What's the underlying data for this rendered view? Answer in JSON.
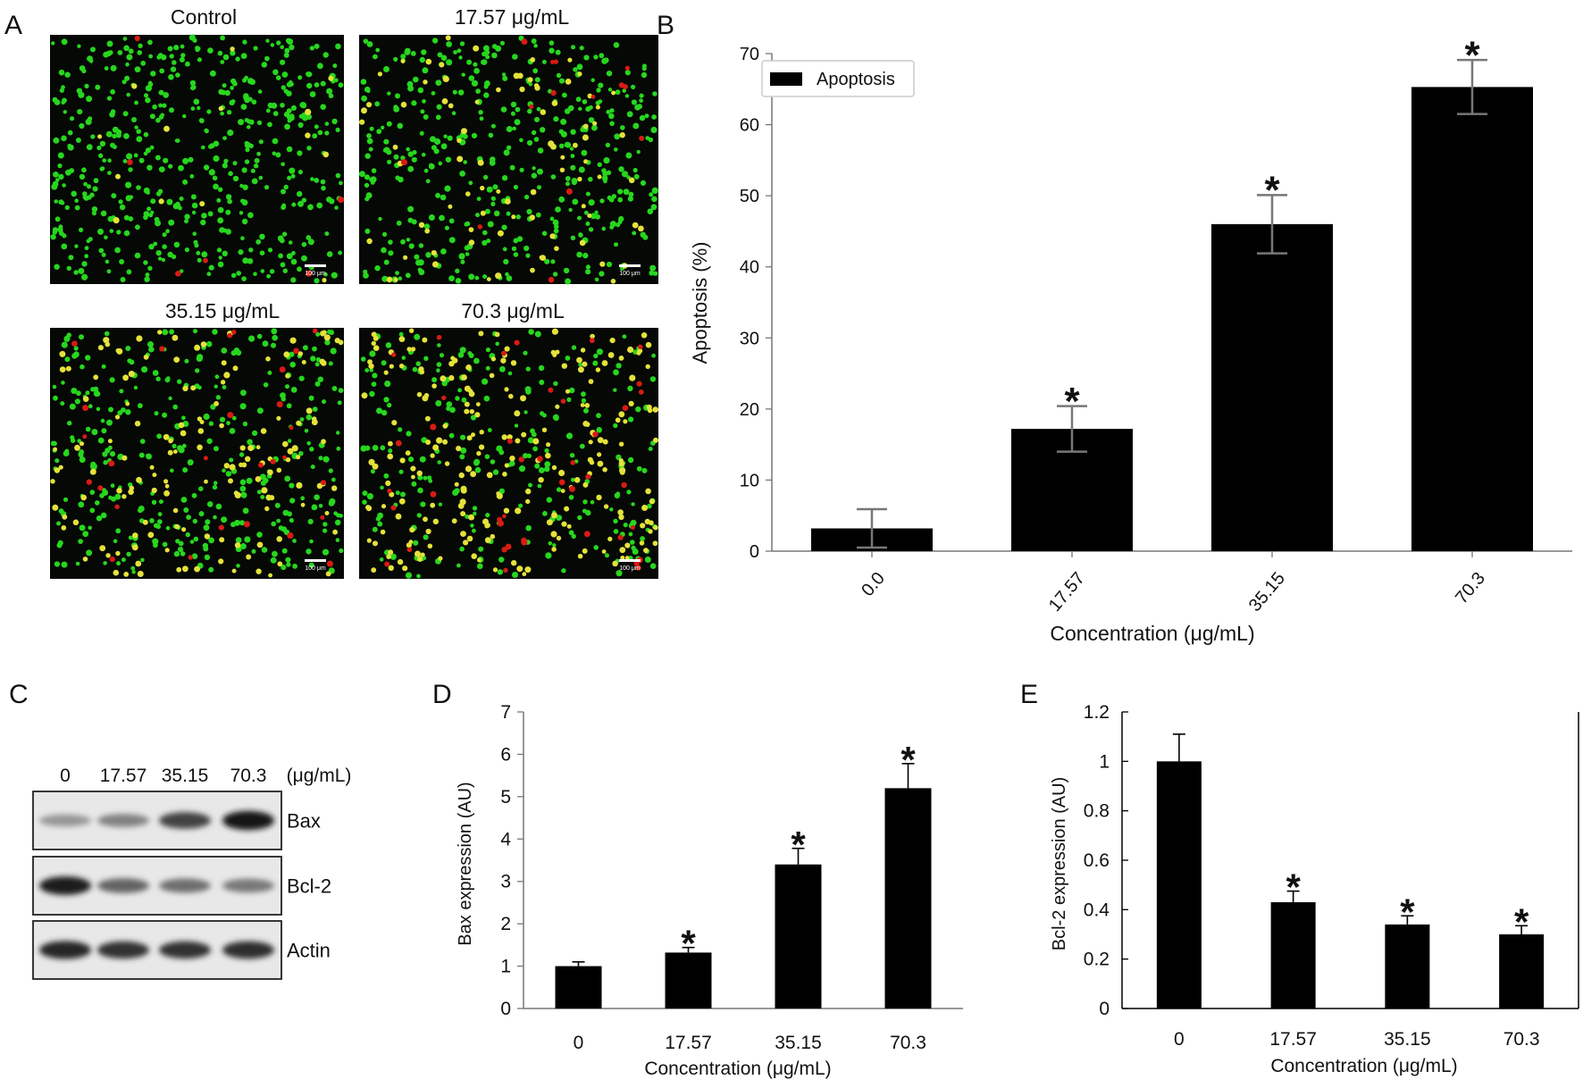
{
  "panel_letters": [
    "A",
    "B",
    "C",
    "D",
    "E"
  ],
  "micrographs": {
    "titles": [
      "Control",
      "17.57 μg/mL",
      "35.15 μg/mL",
      "70.3 μg/mL"
    ],
    "scale_bar_label": "100 μm",
    "cell_counts": {
      "Control": {
        "green": 520,
        "yellow": 14,
        "red": 6
      },
      "17.57 μg/mL": {
        "green": 430,
        "yellow": 85,
        "red": 14
      },
      "35.15 μg/mL": {
        "green": 360,
        "yellow": 150,
        "red": 28
      },
      "70.3 μg/mL": {
        "green": 260,
        "yellow": 240,
        "red": 42
      }
    },
    "colors": {
      "background": "#050805",
      "green": "#27d61e",
      "yellow": "#e4e23a",
      "red": "#d81b14",
      "scale_bar": "#ffffff"
    }
  },
  "western_blot": {
    "lane_labels": [
      "0",
      "17.57",
      "35.15",
      "70.3"
    ],
    "unit_label": "(μg/mL)",
    "blots": [
      {
        "name": "Bax",
        "intensities": [
          0.3,
          0.4,
          0.72,
          0.95
        ]
      },
      {
        "name": "Bcl-2",
        "intensities": [
          0.9,
          0.55,
          0.5,
          0.45
        ]
      },
      {
        "name": "Actin",
        "intensities": [
          0.85,
          0.8,
          0.8,
          0.82
        ]
      }
    ]
  },
  "chart_data": [
    {
      "panel": "B",
      "type": "bar",
      "categories": [
        "0.0",
        "17.57",
        "35.15",
        "70.3"
      ],
      "series": [
        {
          "name": "Apoptosis",
          "values": [
            3.2,
            17.2,
            46.0,
            65.3
          ],
          "errors": [
            2.7,
            3.2,
            4.1,
            3.8
          ]
        }
      ],
      "significance": [
        "",
        "*",
        "*",
        "*"
      ],
      "xlabel": "Concentration (μg/mL)",
      "ylabel": "Apoptosis (%)",
      "ylim": [
        0,
        70
      ],
      "yticks": [
        0,
        10,
        20,
        30,
        40,
        50,
        60,
        70
      ],
      "legend": "top-left",
      "grid": false,
      "colors": {
        "bar": "#000000",
        "error_bar": "#777777"
      }
    },
    {
      "panel": "D",
      "type": "bar",
      "categories": [
        "0",
        "17.57",
        "35.15",
        "70.3"
      ],
      "series": [
        {
          "values": [
            1.0,
            1.32,
            3.4,
            5.2
          ],
          "errors": [
            0.1,
            0.12,
            0.38,
            0.58
          ]
        }
      ],
      "significance": [
        "",
        "*",
        "*",
        "*"
      ],
      "xlabel": "Concentration (μg/mL)",
      "ylabel": "Bax expression (AU)",
      "ylim": [
        0,
        7
      ],
      "yticks": [
        "0",
        "1",
        "2",
        "3",
        "4",
        "5",
        "6",
        "7"
      ],
      "grid": false,
      "colors": {
        "bar": "#000000",
        "error_bar": "#000000"
      }
    },
    {
      "panel": "E",
      "type": "bar",
      "categories": [
        "0",
        "17.57",
        "35.15",
        "70.3"
      ],
      "series": [
        {
          "values": [
            1.0,
            0.43,
            0.34,
            0.3
          ],
          "errors": [
            0.11,
            0.045,
            0.035,
            0.035
          ]
        }
      ],
      "significance": [
        "",
        "*",
        "*",
        "*"
      ],
      "xlabel": "Concentration (μg/mL)",
      "ylabel": "Bcl-2 expression (AU)",
      "ylim": [
        0,
        1.2
      ],
      "yticks": [
        "0",
        "0.2",
        "0.4",
        "0.6",
        "0.8",
        "1",
        "1.2"
      ],
      "grid": false,
      "colors": {
        "bar": "#000000",
        "error_bar": "#000000"
      }
    }
  ]
}
